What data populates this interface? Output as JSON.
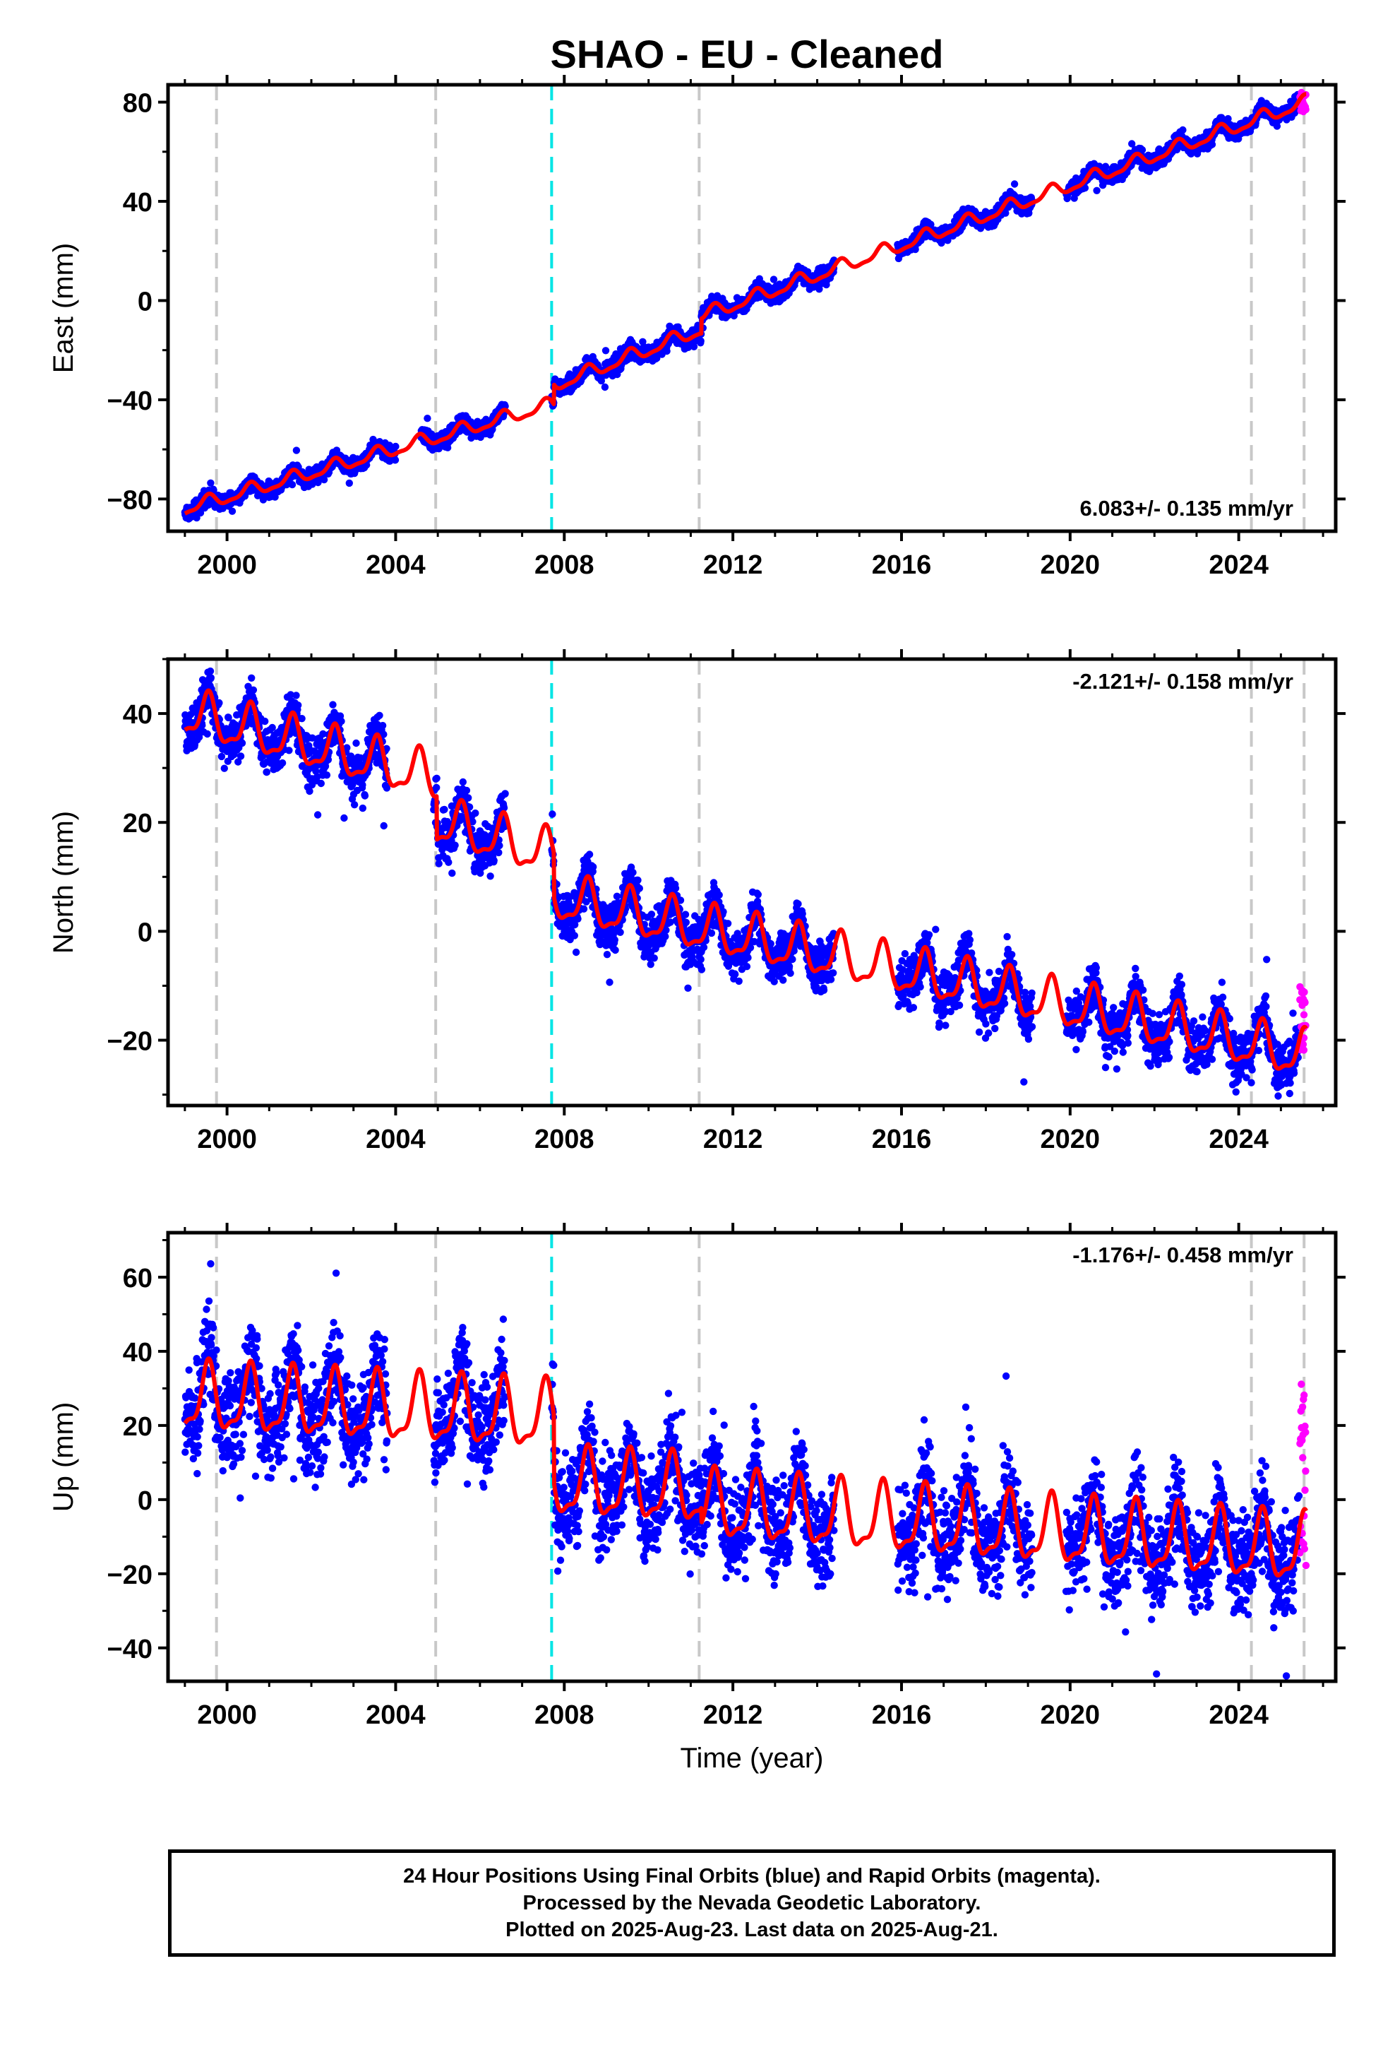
{
  "title": "SHAO  - EU - Cleaned",
  "x_axis": {
    "label": "Time (year)",
    "ticks": [
      2000,
      2004,
      2008,
      2012,
      2016,
      2020,
      2024
    ],
    "xlim": [
      1998.6,
      2026.3
    ]
  },
  "vertical_lines": {
    "gray_dashed": [
      1999.75,
      2004.95,
      2011.2,
      2024.3,
      2025.55
    ],
    "cyan_dashed": [
      2007.7
    ]
  },
  "colors": {
    "final_orbits": "#0000ff",
    "rapid_orbits": "#ff00ff",
    "model_fit": "#ff0000",
    "gray_event": "#c8c8c8",
    "cyan_event": "#00e5e5"
  },
  "chart_data": [
    {
      "type": "scatter",
      "component": "east",
      "ylabel": "East (mm)",
      "ylim": [
        -93,
        87
      ],
      "yticks": [
        80,
        40,
        0,
        -40,
        -80
      ],
      "velocity_label": "6.083+/- 0.135 mm/yr",
      "velocity_position": "bottom-right",
      "trend": {
        "rate": 6.083,
        "anchors": [
          [
            1999.0,
            -84
          ],
          [
            2007.7,
            -42
          ],
          [
            2007.8,
            -34
          ],
          [
            2011.2,
            -12
          ],
          [
            2011.3,
            -6
          ],
          [
            2025.6,
            80
          ]
        ]
      },
      "seasonal": {
        "amplitude": 2.5,
        "noise": 1.6
      },
      "final_data_x_range": [
        1999.0,
        2025.45
      ],
      "gaps": [
        [
          2004.0,
          2004.6
        ],
        [
          2006.6,
          2007.7
        ],
        [
          2014.4,
          2015.9
        ],
        [
          2019.1,
          2019.9
        ]
      ],
      "rapid_data": {
        "x_range": [
          2025.45,
          2025.6
        ],
        "y_range": [
          76,
          84
        ]
      }
    },
    {
      "type": "scatter",
      "component": "north",
      "ylabel": "North (mm)",
      "ylim": [
        -32,
        50
      ],
      "yticks": [
        40,
        20,
        0,
        -20
      ],
      "velocity_label": "-2.121+/- 0.158 mm/yr",
      "velocity_position": "top-right",
      "trend": {
        "rate": -2.121,
        "anchors": [
          [
            1999.0,
            40
          ],
          [
            2004.95,
            28
          ],
          [
            2005.0,
            20
          ],
          [
            2007.7,
            14
          ],
          [
            2007.8,
            6
          ],
          [
            2025.6,
            -23
          ]
        ]
      },
      "seasonal": {
        "amplitude": 4.0,
        "noise": 2.2
      },
      "final_data_x_range": [
        1999.0,
        2025.45
      ],
      "gaps": [
        [
          2003.8,
          2004.9
        ],
        [
          2006.6,
          2007.7
        ],
        [
          2014.4,
          2015.9
        ],
        [
          2019.1,
          2019.9
        ]
      ],
      "rapid_data": {
        "x_range": [
          2025.45,
          2025.6
        ],
        "y_range": [
          -22,
          -10
        ]
      }
    },
    {
      "type": "scatter",
      "component": "up",
      "ylabel": "Up (mm)",
      "ylim": [
        -49,
        72
      ],
      "yticks": [
        60,
        40,
        20,
        0,
        -20,
        -40
      ],
      "velocity_label": "-1.176+/- 0.458 mm/yr",
      "velocity_position": "top-right",
      "trend": {
        "rate": -1.176,
        "anchors": [
          [
            1999.0,
            27
          ],
          [
            2007.7,
            22
          ],
          [
            2007.8,
            4
          ],
          [
            2011.2,
            2
          ],
          [
            2011.3,
            -2
          ],
          [
            2025.6,
            -14
          ]
        ]
      },
      "seasonal": {
        "amplitude": 8.5,
        "noise": 6.5
      },
      "final_data_x_range": [
        1999.0,
        2025.45
      ],
      "gaps": [
        [
          2003.8,
          2004.9
        ],
        [
          2006.6,
          2007.7
        ],
        [
          2014.4,
          2015.9
        ],
        [
          2019.1,
          2019.9
        ]
      ],
      "rapid_data": {
        "x_range": [
          2025.45,
          2025.6
        ],
        "y_range": [
          -18,
          35
        ]
      }
    }
  ],
  "footer": {
    "line1": "24 Hour Positions Using Final Orbits (blue) and Rapid Orbits (magenta).",
    "line2": "Processed by the Nevada Geodetic Laboratory.",
    "line3": "Plotted on 2025-Aug-23. Last data on 2025-Aug-21."
  }
}
